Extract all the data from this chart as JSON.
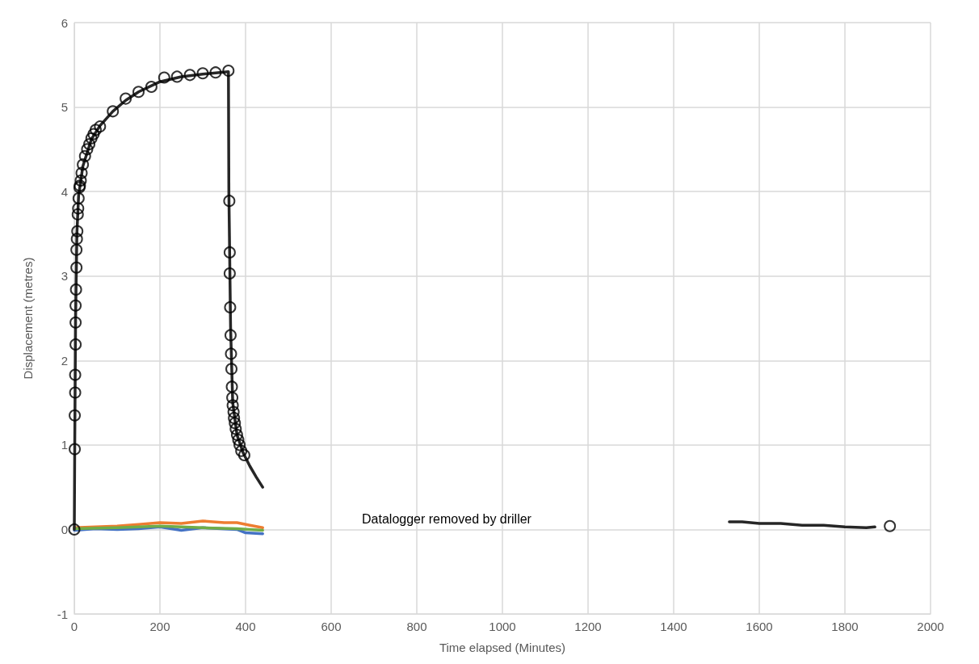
{
  "chart_data": {
    "type": "line",
    "xlabel": "Time elapsed (Minutes)",
    "ylabel": "Displacement (metres)",
    "xlim": [
      0,
      2000
    ],
    "ylim": [
      -1,
      6
    ],
    "xticks": [
      0,
      200,
      400,
      600,
      800,
      1000,
      1200,
      1400,
      1600,
      1800,
      2000
    ],
    "yticks": [
      -1,
      0,
      1,
      2,
      3,
      4,
      5,
      6
    ],
    "grid": true,
    "line_style": "solid",
    "annotations": [
      "Datalogger removed by driller"
    ],
    "series": [
      {
        "marker": "none",
        "color": "#ed7d31",
        "x": [
          0,
          50,
          100,
          150,
          200,
          250,
          300,
          350,
          380,
          410,
          440
        ],
        "values": [
          0.02,
          0.03,
          0.04,
          0.06,
          0.08,
          0.07,
          0.1,
          0.08,
          0.08,
          0.05,
          0.02
        ]
      },
      {
        "marker": "none",
        "color": "#4472c4",
        "x": [
          0,
          50,
          100,
          150,
          200,
          250,
          300,
          380,
          400,
          440
        ],
        "values": [
          -0.01,
          0.01,
          0,
          0.01,
          0.03,
          -0.01,
          0.02,
          0,
          -0.04,
          -0.05
        ]
      },
      {
        "marker": "none",
        "color": "#70ad47",
        "x": [
          0,
          100,
          200,
          300,
          380,
          440
        ],
        "values": [
          0.01,
          0.02,
          0.04,
          0.02,
          0.01,
          -0.01
        ]
      },
      {
        "marker": "none",
        "color": "#262626",
        "x": [
          0,
          1,
          3,
          6,
          10,
          20,
          40,
          60,
          90,
          120,
          150,
          200,
          250,
          300,
          360,
          361,
          365,
          370,
          380,
          395,
          410,
          425,
          440,
          1000,
          1530,
          1560,
          1600,
          1650,
          1700,
          1750,
          1800,
          1850,
          1870
        ],
        "values": [
          0,
          1,
          2.5,
          3.5,
          3.95,
          4.3,
          4.62,
          4.78,
          4.95,
          5.08,
          5.18,
          5.3,
          5.36,
          5.39,
          5.42,
          4.0,
          2.4,
          1.5,
          1.12,
          0.9,
          0.75,
          0.62,
          0.5,
          null,
          0.09,
          0.09,
          0.07,
          0.07,
          0.05,
          0.05,
          0.03,
          0.02,
          0.03
        ]
      },
      {
        "type": "scatter",
        "marker": "circle",
        "color": "#000000",
        "x": [
          0,
          1,
          1,
          2,
          2,
          3,
          3,
          3,
          4,
          5,
          5,
          6,
          7,
          8,
          9,
          10,
          12,
          13,
          15,
          17,
          20,
          25,
          30,
          35,
          40,
          45,
          50,
          60,
          90,
          120,
          150,
          180,
          210,
          240,
          270,
          300,
          330,
          360,
          362,
          363,
          363,
          364,
          365,
          366,
          367,
          368,
          369,
          370,
          372,
          373,
          375,
          377,
          380,
          383,
          386,
          390,
          397,
          1905
        ],
        "values": [
          0,
          0.95,
          1.35,
          1.62,
          1.83,
          2.19,
          2.45,
          2.65,
          2.84,
          3.1,
          3.31,
          3.44,
          3.53,
          3.73,
          3.8,
          3.92,
          4.05,
          4.07,
          4.13,
          4.22,
          4.32,
          4.42,
          4.5,
          4.56,
          4.63,
          4.68,
          4.73,
          4.77,
          4.95,
          5.1,
          5.18,
          5.24,
          5.35,
          5.36,
          5.38,
          5.4,
          5.41,
          5.43,
          3.89,
          3.28,
          3.03,
          2.63,
          2.3,
          2.08,
          1.9,
          1.69,
          1.56,
          1.47,
          1.39,
          1.32,
          1.26,
          1.19,
          1.12,
          1.06,
          1,
          0.93,
          0.88,
          0.04
        ]
      }
    ]
  }
}
